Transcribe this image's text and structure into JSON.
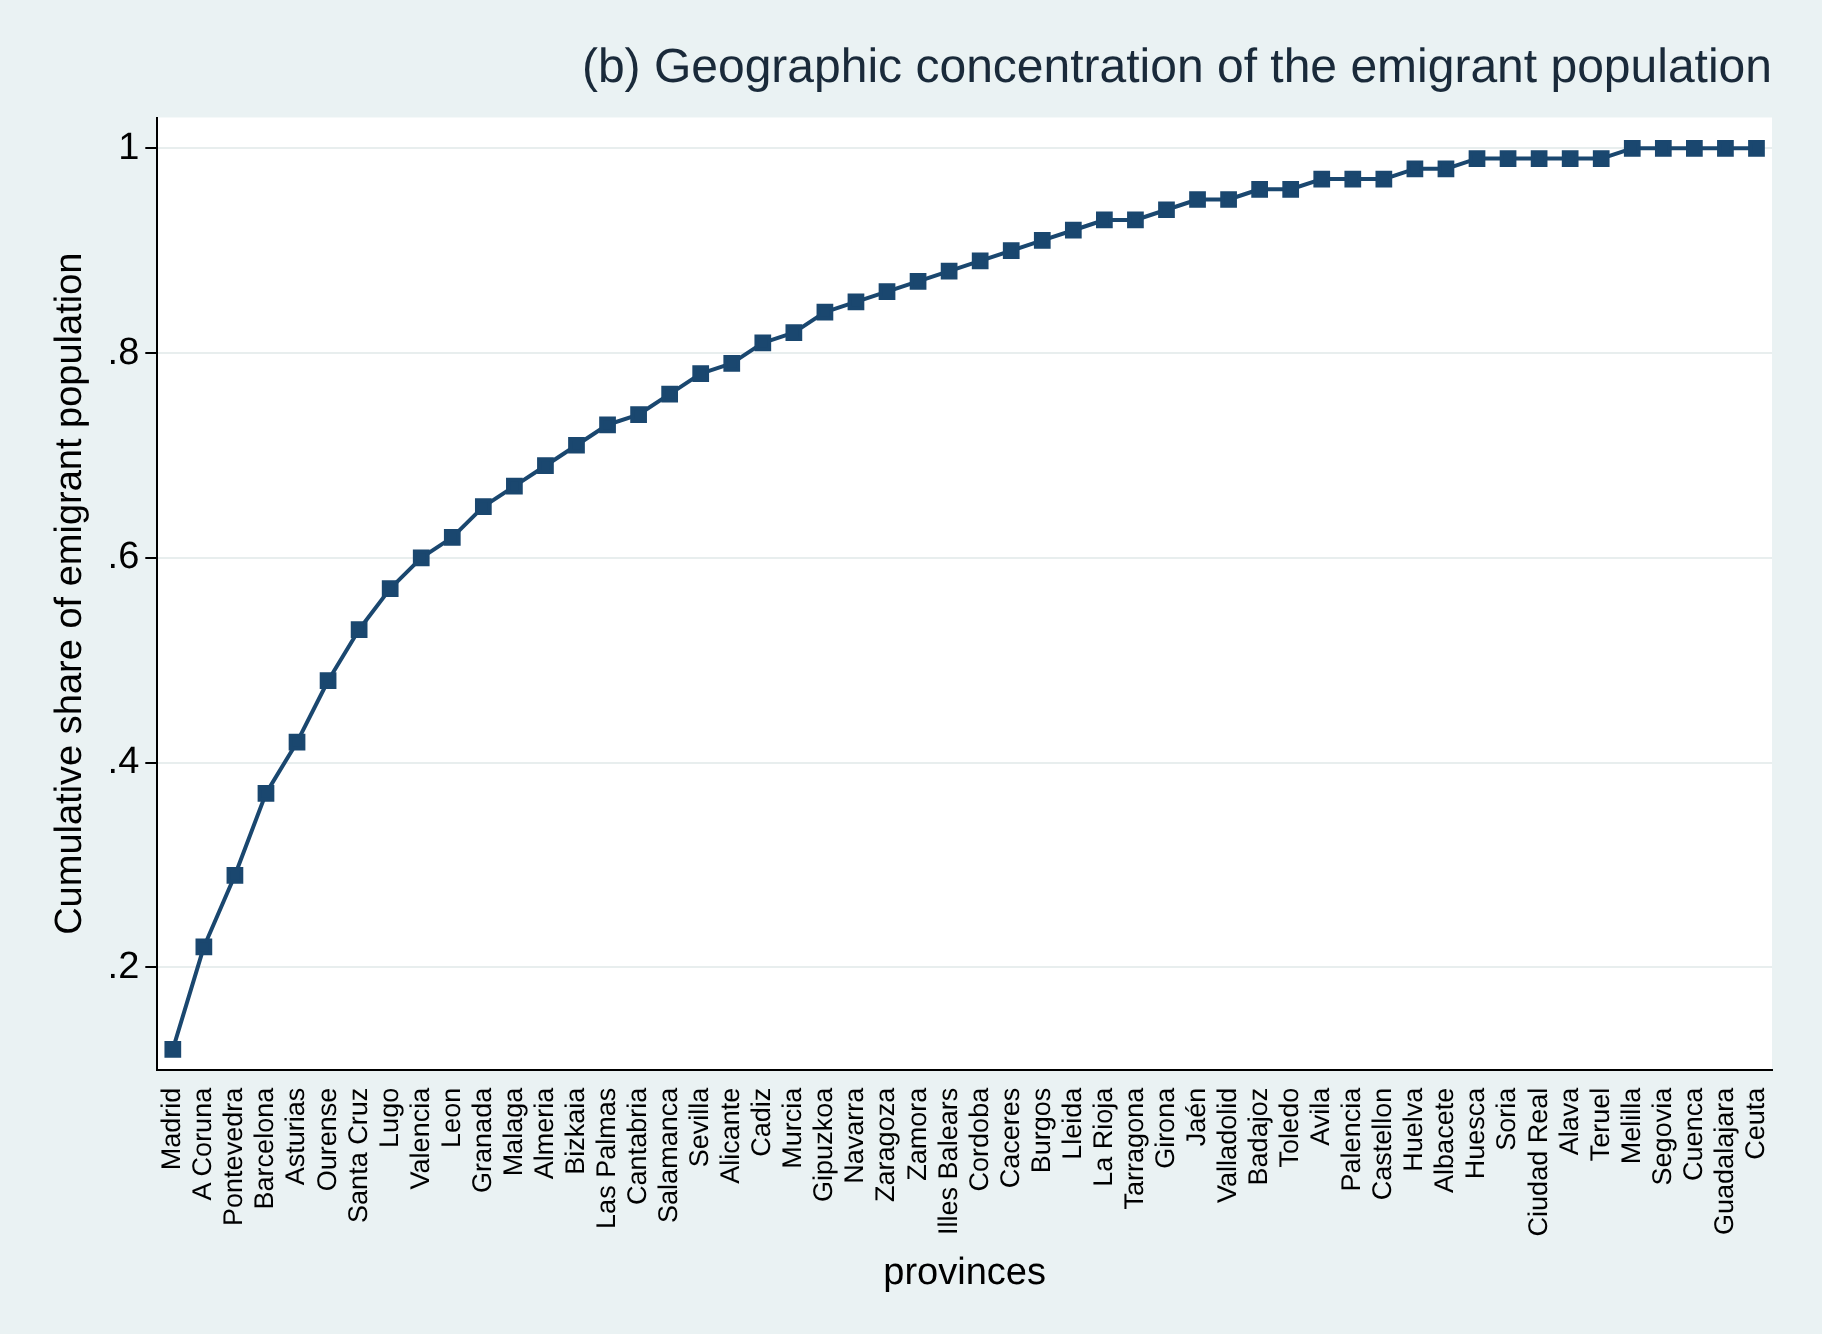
{
  "chart_data": {
    "type": "line",
    "title": "(b) Geographic concentration of the emigrant population",
    "xlabel": "provinces",
    "ylabel": "Cumulative share of emigrant population",
    "categories": [
      "Madrid",
      "A Coruna",
      "Pontevedra",
      "Barcelona",
      "Asturias",
      "Ourense",
      "Santa Cruz",
      "Lugo",
      "Valencia",
      "Leon",
      "Granada",
      "Malaga",
      "Almeria",
      "Bizkaia",
      "Las Palmas",
      "Cantabria",
      "Salamanca",
      "Sevilla",
      "Alicante",
      "Cadiz",
      "Murcia",
      "Gipuzkoa",
      "Navarra",
      "Zaragoza",
      "Zamora",
      "Illes Balears",
      "Cordoba",
      "Caceres",
      "Burgos",
      "Lleida",
      "La Rioja",
      "Tarragona",
      "Girona",
      "Jaén",
      "Valladolid",
      "Badajoz",
      "Toledo",
      "Avila",
      "Palencia",
      "Castellon",
      "Huelva",
      "Albacete",
      "Huesca",
      "Soria",
      "Ciudad Real",
      "Alava",
      "Teruel",
      "Melilla",
      "Segovia",
      "Cuenca",
      "Guadalajara",
      "Ceuta"
    ],
    "series": [
      {
        "color": "#1a476f",
        "values": [
          0.12,
          0.22,
          0.29,
          0.37,
          0.42,
          0.48,
          0.53,
          0.57,
          0.6,
          0.62,
          0.65,
          0.67,
          0.69,
          0.71,
          0.73,
          0.74,
          0.76,
          0.78,
          0.79,
          0.81,
          0.82,
          0.84,
          0.85,
          0.86,
          0.87,
          0.88,
          0.89,
          0.9,
          0.91,
          0.92,
          0.93,
          0.93,
          0.94,
          0.95,
          0.95,
          0.96,
          0.96,
          0.97,
          0.97,
          0.97,
          0.98,
          0.98,
          0.99,
          0.99,
          0.99,
          0.99,
          0.99,
          1.0,
          1.0,
          1.0,
          1.0,
          1.0
        ]
      }
    ],
    "ylim": [
      0.1,
      1.03
    ],
    "yticks": [
      {
        "value": 0.2,
        "label": ".2"
      },
      {
        "value": 0.4,
        "label": ".4"
      },
      {
        "value": 0.6,
        "label": ".6"
      },
      {
        "value": 0.8,
        "label": ".8"
      },
      {
        "value": 1,
        "label": "1"
      }
    ],
    "grid": "y",
    "legend": false,
    "marker": "square",
    "line_style": "solid"
  }
}
